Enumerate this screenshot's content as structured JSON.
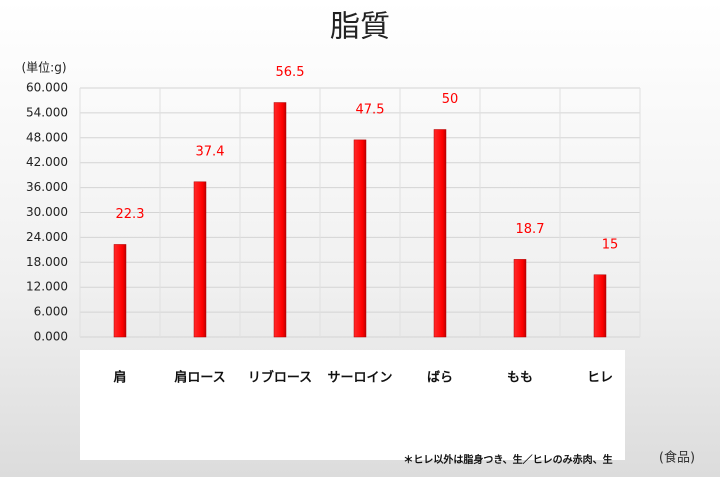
{
  "chart_data": {
    "type": "bar",
    "title": "脂質",
    "y_label": "(単位:g)",
    "x_label": "(食品)",
    "note": "＊ヒレ以外は脂身つき、生／ヒレのみ赤肉、生",
    "categories": [
      "肩",
      "肩ロース",
      "リブロース",
      "サーロイン",
      "ばら",
      "もも",
      "ヒレ"
    ],
    "values": [
      22.3,
      37.4,
      56.5,
      47.5,
      50,
      18.7,
      15
    ],
    "color": "#ff0000",
    "label_color": "#ff0000",
    "ylim": [
      0,
      60
    ],
    "yticks": [
      {
        "value": 0,
        "label": "0.000"
      },
      {
        "value": 6,
        "label": "6.000"
      },
      {
        "value": 12,
        "label": "12.000"
      },
      {
        "value": 18,
        "label": "18.000"
      },
      {
        "value": 24,
        "label": "24.000"
      },
      {
        "value": 30,
        "label": "30.000"
      },
      {
        "value": 36,
        "label": "36.000"
      },
      {
        "value": 42,
        "label": "42.000"
      },
      {
        "value": 48,
        "label": "48.000"
      },
      {
        "value": 54,
        "label": "54.000"
      },
      {
        "value": 60,
        "label": "60.000"
      }
    ],
    "grid": true
  }
}
